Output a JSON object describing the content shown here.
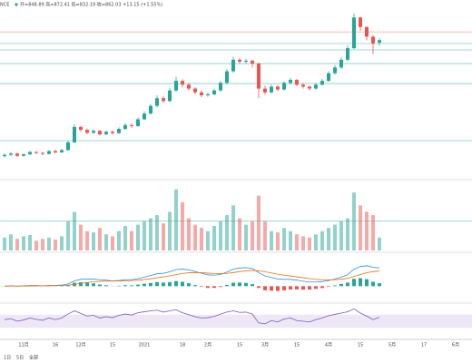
{
  "chart_data": {
    "type": "candlestick",
    "symbol": "NCE",
    "header": "开=848.89 高=872.41 低=832.19 收=862.03 +13.15 (+1.55%)",
    "up_color": "#26a69a",
    "down_color": "#ef5350",
    "ylim": [
      150,
      1000
    ],
    "candles": [
      [
        258,
        272,
        252,
        265
      ],
      [
        265,
        279,
        260,
        272
      ],
      [
        272,
        276,
        254,
        260
      ],
      [
        260,
        273,
        255,
        268
      ],
      [
        268,
        286,
        263,
        280
      ],
      [
        280,
        284,
        268,
        275
      ],
      [
        275,
        281,
        262,
        270
      ],
      [
        270,
        290,
        266,
        285
      ],
      [
        285,
        292,
        272,
        278
      ],
      [
        278,
        296,
        274,
        290
      ],
      [
        290,
        338,
        286,
        330
      ],
      [
        330,
        425,
        326,
        410
      ],
      [
        410,
        418,
        385,
        395
      ],
      [
        395,
        402,
        372,
        380
      ],
      [
        380,
        398,
        374,
        390
      ],
      [
        390,
        395,
        365,
        372
      ],
      [
        372,
        392,
        366,
        385
      ],
      [
        385,
        392,
        370,
        378
      ],
      [
        378,
        408,
        374,
        400
      ],
      [
        400,
        430,
        395,
        420
      ],
      [
        420,
        428,
        405,
        415
      ],
      [
        415,
        460,
        410,
        450
      ],
      [
        450,
        492,
        445,
        480
      ],
      [
        480,
        530,
        474,
        520
      ],
      [
        520,
        575,
        512,
        560
      ],
      [
        560,
        572,
        535,
        545
      ],
      [
        545,
        612,
        540,
        600
      ],
      [
        600,
        672,
        592,
        650
      ],
      [
        650,
        658,
        615,
        630
      ],
      [
        630,
        640,
        598,
        610
      ],
      [
        610,
        618,
        580,
        590
      ],
      [
        590,
        600,
        565,
        575
      ],
      [
        575,
        590,
        568,
        580
      ],
      [
        580,
        610,
        575,
        600
      ],
      [
        600,
        650,
        595,
        640
      ],
      [
        640,
        712,
        632,
        700
      ],
      [
        700,
        775,
        692,
        760
      ],
      [
        760,
        770,
        738,
        750
      ],
      [
        750,
        765,
        740,
        755
      ],
      [
        755,
        760,
        720,
        740
      ],
      [
        740,
        745,
        560,
        610
      ],
      [
        610,
        625,
        578,
        590
      ],
      [
        590,
        630,
        585,
        620
      ],
      [
        620,
        628,
        596,
        605
      ],
      [
        605,
        648,
        600,
        640
      ],
      [
        640,
        665,
        632,
        655
      ],
      [
        655,
        660,
        622,
        630
      ],
      [
        630,
        638,
        610,
        620
      ],
      [
        620,
        626,
        600,
        610
      ],
      [
        610,
        638,
        604,
        630
      ],
      [
        630,
        660,
        625,
        650
      ],
      [
        650,
        700,
        645,
        690
      ],
      [
        690,
        732,
        682,
        720
      ],
      [
        720,
        772,
        712,
        760
      ],
      [
        760,
        835,
        752,
        820
      ],
      [
        820,
        1000,
        815,
        980
      ],
      [
        980,
        985,
        910,
        930
      ],
      [
        930,
        935,
        860,
        880
      ],
      [
        880,
        888,
        790,
        845
      ],
      [
        848.89,
        872.41,
        832.19,
        862.03
      ]
    ],
    "levels": [
      {
        "value": 905,
        "color": "#f4a09a"
      },
      {
        "value": 844,
        "color": "#80cbc4"
      },
      {
        "value": 811,
        "color": "#80cbc4"
      },
      {
        "value": 740,
        "color": "#80cbc4"
      },
      {
        "value": 636,
        "color": "#80cbc4"
      },
      {
        "value": 339,
        "color": "#80cbc4"
      }
    ],
    "volume_ylim": [
      0,
      100
    ],
    "volume": [
      20,
      25,
      18,
      22,
      24,
      15,
      18,
      20,
      17,
      22,
      45,
      60,
      40,
      30,
      28,
      35,
      25,
      22,
      30,
      38,
      30,
      40,
      45,
      50,
      55,
      42,
      60,
      95,
      75,
      50,
      40,
      35,
      30,
      38,
      45,
      55,
      70,
      50,
      40,
      45,
      85,
      45,
      30,
      28,
      35,
      30,
      25,
      22,
      20,
      25,
      30,
      35,
      40,
      45,
      50,
      90,
      70,
      60,
      55,
      20
    ],
    "volume_levels": [
      46
    ],
    "macd_ylim": [
      -40,
      80
    ],
    "macd": [
      0,
      1,
      0,
      1,
      2,
      2,
      1,
      2,
      2,
      3,
      6,
      14,
      18,
      19,
      19,
      17,
      16,
      14,
      15,
      17,
      17,
      20,
      24,
      28,
      33,
      34,
      38,
      44,
      45,
      43,
      39,
      34,
      30,
      29,
      31,
      37,
      45,
      48,
      49,
      47,
      36,
      27,
      23,
      19,
      18,
      18,
      16,
      13,
      11,
      11,
      12,
      15,
      19,
      24,
      30,
      45,
      52,
      54,
      50,
      48
    ],
    "signal": [
      0,
      0.2,
      0.2,
      0.4,
      0.7,
      1,
      1,
      1.2,
      1.4,
      1.7,
      2.6,
      4.9,
      7.5,
      9.8,
      11.6,
      12.7,
      13.4,
      13.5,
      13.8,
      14.4,
      14.9,
      15.9,
      17.5,
      19.6,
      22.3,
      24.6,
      27.3,
      30.6,
      33.5,
      35.4,
      36.1,
      35.7,
      34.6,
      33.5,
      33,
      33.8,
      36,
      38.4,
      40.5,
      41.8,
      40.6,
      37.9,
      34.9,
      31.7,
      29,
      26.8,
      24.6,
      22.3,
      20,
      18.2,
      16.9,
      16.5,
      17,
      18.4,
      20.7,
      25.6,
      30.9,
      35.5,
      38.4,
      40.3
    ],
    "histogram": [
      0,
      0.8,
      -0.2,
      0.6,
      1.3,
      1,
      0,
      0.8,
      0.6,
      1.3,
      3.4,
      9.1,
      10.5,
      9.2,
      7.4,
      4.3,
      2.6,
      0.5,
      1.2,
      2.6,
      2.1,
      4.1,
      6.5,
      8.4,
      10.7,
      9.4,
      10.7,
      13.4,
      11.5,
      7.6,
      2.9,
      -1.7,
      -4.6,
      -4.5,
      -2,
      3.2,
      9,
      9.6,
      8.5,
      5.2,
      -4.6,
      -10.9,
      -11.9,
      -12.7,
      -11,
      -8.8,
      -8.6,
      -9.3,
      -9,
      -7.2,
      -4.9,
      -1.5,
      2,
      5.6,
      9.3,
      19.4,
      21.1,
      18.5,
      11.6,
      7.7
    ],
    "macd_color": "#2196f3",
    "signal_color": "#ff6d00",
    "rsi_ylim": [
      0,
      100
    ],
    "rsi_band": [
      30,
      70
    ],
    "rsi_color": "#7e57c2",
    "rsi": [
      55,
      58,
      50,
      54,
      60,
      56,
      53,
      60,
      55,
      60,
      72,
      82,
      74,
      66,
      68,
      60,
      64,
      61,
      68,
      72,
      69,
      76,
      79,
      82,
      84,
      78,
      82,
      85,
      76,
      70,
      64,
      60,
      61,
      65,
      72,
      78,
      82,
      77,
      78,
      72,
      45,
      42,
      52,
      48,
      57,
      60,
      52,
      50,
      48,
      55,
      60,
      67,
      71,
      75,
      79,
      88,
      75,
      66,
      55,
      62
    ],
    "x_labels": [
      {
        "label": "11月",
        "index": 3
      },
      {
        "label": "16",
        "index": 8
      },
      {
        "label": "12月",
        "index": 12
      },
      {
        "label": "15",
        "index": 17
      },
      {
        "label": "2021",
        "index": 22
      },
      {
        "label": "18",
        "index": 28
      },
      {
        "label": "2月",
        "index": 32
      },
      {
        "label": "15",
        "index": 37
      },
      {
        "label": "3月",
        "index": 41
      },
      {
        "label": "15",
        "index": 46
      },
      {
        "label": "4月",
        "index": 51
      },
      {
        "label": "15",
        "index": 56
      },
      {
        "label": "5月",
        "index": 61
      },
      {
        "label": "17",
        "index": 66
      },
      {
        "label": "6月",
        "index": 71
      }
    ],
    "ranges": [
      "1日",
      "5日",
      "全部"
    ]
  }
}
